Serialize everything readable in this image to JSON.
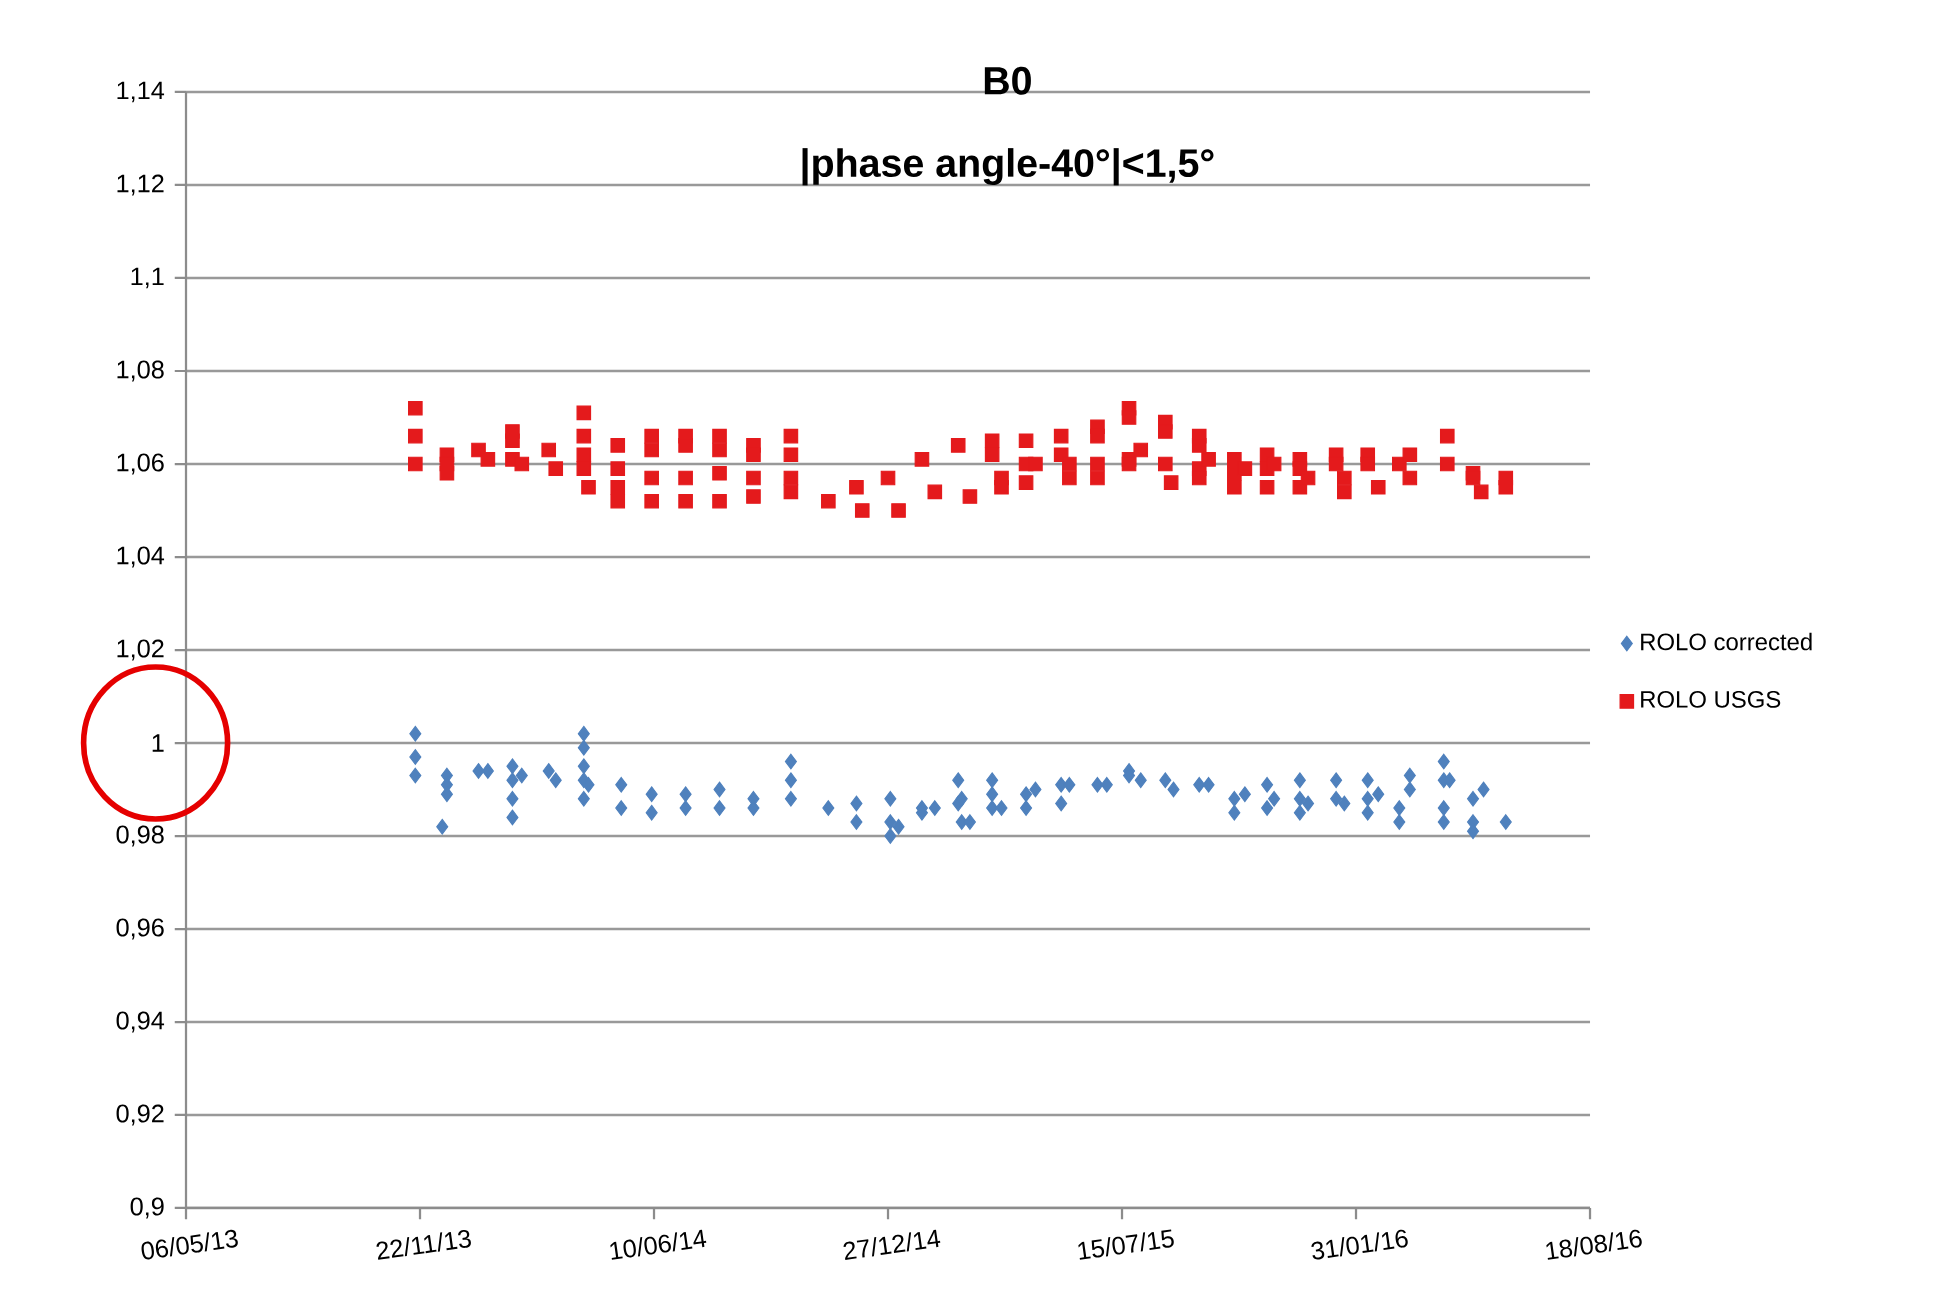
{
  "chart_data": {
    "type": "scatter",
    "title": "B0",
    "subtitle": "|phase angle-40°|<1,5°",
    "xlim": [
      "2013-05-06",
      "2016-08-18"
    ],
    "xticks": [
      {
        "value": "2013-05-06",
        "label": "06/05/13"
      },
      {
        "value": "2013-11-22",
        "label": "22/11/13"
      },
      {
        "value": "2014-06-10",
        "label": "10/06/14"
      },
      {
        "value": "2014-12-27",
        "label": "27/12/14"
      },
      {
        "value": "2015-07-15",
        "label": "15/07/15"
      },
      {
        "value": "2016-01-31",
        "label": "31/01/16"
      },
      {
        "value": "2016-08-18",
        "label": "18/08/16"
      }
    ],
    "ylim": [
      0.9,
      1.14
    ],
    "yticks": [
      {
        "value": 0.9,
        "label": "0,9"
      },
      {
        "value": 0.92,
        "label": "0,92"
      },
      {
        "value": 0.94,
        "label": "0,94"
      },
      {
        "value": 0.96,
        "label": "0,96"
      },
      {
        "value": 0.98,
        "label": "0,98"
      },
      {
        "value": 1,
        "label": "1"
      },
      {
        "value": 1.02,
        "label": "1,02"
      },
      {
        "value": 1.04,
        "label": "1,04"
      },
      {
        "value": 1.06,
        "label": "1,06"
      },
      {
        "value": 1.08,
        "label": "1,08"
      },
      {
        "value": 1.1,
        "label": "1,1"
      },
      {
        "value": 1.12,
        "label": "1,12"
      },
      {
        "value": 1.14,
        "label": "1,14"
      }
    ],
    "grid": "y",
    "legend": "right",
    "series": [
      {
        "name": "ROLO corrected",
        "color": "#4f81bd",
        "marker": "diamond",
        "x": [
          "2013-11-18",
          "2013-11-18",
          "2013-11-18",
          "2013-12-11",
          "2013-12-15",
          "2013-12-15",
          "2013-12-15",
          "2014-01-11",
          "2014-01-19",
          "2014-02-09",
          "2014-02-09",
          "2014-02-09",
          "2014-02-09",
          "2014-02-17",
          "2014-03-12",
          "2014-03-18",
          "2014-04-11",
          "2014-04-11",
          "2014-04-11",
          "2014-04-11",
          "2014-04-11",
          "2014-04-15",
          "2014-05-13",
          "2014-05-13",
          "2014-06-08",
          "2014-06-08",
          "2014-07-07",
          "2014-07-07",
          "2014-08-05",
          "2014-08-05",
          "2014-09-03",
          "2014-09-03",
          "2014-10-05",
          "2014-10-05",
          "2014-10-05",
          "2014-11-06",
          "2014-11-30",
          "2014-11-30",
          "2014-12-29",
          "2014-12-29",
          "2014-12-29",
          "2015-01-05",
          "2015-01-25",
          "2015-01-25",
          "2015-02-05",
          "2015-02-25",
          "2015-02-25",
          "2015-02-28",
          "2015-02-28",
          "2015-03-07",
          "2015-03-26",
          "2015-03-26",
          "2015-03-26",
          "2015-04-03",
          "2015-04-24",
          "2015-04-24",
          "2015-05-02",
          "2015-05-24",
          "2015-05-24",
          "2015-05-31",
          "2015-06-24",
          "2015-07-02",
          "2015-07-21",
          "2015-07-21",
          "2015-07-31",
          "2015-08-21",
          "2015-08-28",
          "2015-09-19",
          "2015-09-27",
          "2015-10-19",
          "2015-10-19",
          "2015-10-28",
          "2015-11-16",
          "2015-11-16",
          "2015-11-22",
          "2015-12-14",
          "2015-12-14",
          "2015-12-14",
          "2015-12-21",
          "2016-01-14",
          "2016-01-14",
          "2016-01-21",
          "2016-02-10",
          "2016-02-10",
          "2016-02-10",
          "2016-02-19",
          "2016-03-08",
          "2016-03-08",
          "2016-03-17",
          "2016-03-17",
          "2016-04-15",
          "2016-04-15",
          "2016-04-15",
          "2016-04-15",
          "2016-04-20",
          "2016-05-10",
          "2016-05-10",
          "2016-05-10",
          "2016-05-19",
          "2016-06-07"
        ],
        "values": [
          1.002,
          0.997,
          0.993,
          0.982,
          0.993,
          0.991,
          0.989,
          0.994,
          0.994,
          0.995,
          0.992,
          0.988,
          0.984,
          0.993,
          0.994,
          0.992,
          1.002,
          0.999,
          0.995,
          0.992,
          0.988,
          0.991,
          0.991,
          0.986,
          0.989,
          0.985,
          0.989,
          0.986,
          0.99,
          0.986,
          0.988,
          0.986,
          0.996,
          0.992,
          0.988,
          0.986,
          0.987,
          0.983,
          0.988,
          0.983,
          0.98,
          0.982,
          0.986,
          0.985,
          0.986,
          0.992,
          0.987,
          0.988,
          0.983,
          0.983,
          0.992,
          0.989,
          0.986,
          0.986,
          0.989,
          0.986,
          0.99,
          0.991,
          0.987,
          0.991,
          0.991,
          0.991,
          0.994,
          0.993,
          0.992,
          0.992,
          0.99,
          0.991,
          0.991,
          0.988,
          0.985,
          0.989,
          0.991,
          0.986,
          0.988,
          0.992,
          0.988,
          0.985,
          0.987,
          0.992,
          0.988,
          0.987,
          0.992,
          0.988,
          0.985,
          0.989,
          0.986,
          0.983,
          0.993,
          0.99,
          0.996,
          0.992,
          0.986,
          0.983,
          0.992,
          0.988,
          0.983,
          0.981,
          0.99,
          0.983
        ]
      },
      {
        "name": "ROLO USGS",
        "color": "#e41a1c",
        "marker": "square",
        "x": [
          "2013-11-18",
          "2013-11-18",
          "2013-11-18",
          "2013-12-15",
          "2013-12-15",
          "2013-12-15",
          "2014-01-11",
          "2014-01-19",
          "2014-02-09",
          "2014-02-09",
          "2014-02-09",
          "2014-02-17",
          "2014-03-12",
          "2014-03-18",
          "2014-04-11",
          "2014-04-11",
          "2014-04-11",
          "2014-04-11",
          "2014-04-15",
          "2014-05-10",
          "2014-05-10",
          "2014-05-10",
          "2014-05-10",
          "2014-06-08",
          "2014-06-08",
          "2014-06-08",
          "2014-06-08",
          "2014-07-07",
          "2014-07-07",
          "2014-07-07",
          "2014-07-07",
          "2014-08-05",
          "2014-08-05",
          "2014-08-05",
          "2014-08-05",
          "2014-09-03",
          "2014-09-03",
          "2014-09-03",
          "2014-09-03",
          "2014-10-05",
          "2014-10-05",
          "2014-10-05",
          "2014-10-05",
          "2014-11-06",
          "2014-11-30",
          "2014-12-05",
          "2014-12-27",
          "2015-01-05",
          "2015-01-25",
          "2015-02-05",
          "2015-02-25",
          "2015-03-07",
          "2015-03-26",
          "2015-03-26",
          "2015-04-03",
          "2015-04-03",
          "2015-04-24",
          "2015-04-24",
          "2015-04-24",
          "2015-05-02",
          "2015-05-24",
          "2015-05-24",
          "2015-05-31",
          "2015-05-31",
          "2015-06-24",
          "2015-06-24",
          "2015-06-24",
          "2015-06-24",
          "2015-07-21",
          "2015-07-21",
          "2015-07-21",
          "2015-07-21",
          "2015-07-31",
          "2015-08-21",
          "2015-08-21",
          "2015-08-21",
          "2015-08-26",
          "2015-09-19",
          "2015-09-19",
          "2015-09-19",
          "2015-09-19",
          "2015-09-27",
          "2015-10-19",
          "2015-10-19",
          "2015-10-19",
          "2015-10-28",
          "2015-11-16",
          "2015-11-16",
          "2015-11-16",
          "2015-11-22",
          "2015-12-14",
          "2015-12-14",
          "2015-12-14",
          "2015-12-21",
          "2016-01-14",
          "2016-01-14",
          "2016-01-21",
          "2016-01-21",
          "2016-02-10",
          "2016-02-10",
          "2016-02-19",
          "2016-03-08",
          "2016-03-17",
          "2016-03-17",
          "2016-04-18",
          "2016-04-18",
          "2016-05-10",
          "2016-05-10",
          "2016-05-17",
          "2016-06-07",
          "2016-06-07"
        ],
        "values": [
          1.072,
          1.066,
          1.06,
          1.062,
          1.06,
          1.058,
          1.063,
          1.061,
          1.067,
          1.065,
          1.061,
          1.06,
          1.063,
          1.059,
          1.071,
          1.066,
          1.062,
          1.059,
          1.055,
          1.064,
          1.059,
          1.055,
          1.052,
          1.066,
          1.063,
          1.057,
          1.052,
          1.066,
          1.064,
          1.057,
          1.052,
          1.066,
          1.063,
          1.058,
          1.052,
          1.064,
          1.062,
          1.057,
          1.053,
          1.066,
          1.062,
          1.057,
          1.054,
          1.052,
          1.055,
          1.05,
          1.057,
          1.05,
          1.061,
          1.054,
          1.064,
          1.053,
          1.065,
          1.062,
          1.057,
          1.055,
          1.065,
          1.06,
          1.056,
          1.06,
          1.066,
          1.062,
          1.06,
          1.057,
          1.068,
          1.066,
          1.06,
          1.057,
          1.072,
          1.07,
          1.061,
          1.06,
          1.063,
          1.069,
          1.067,
          1.06,
          1.056,
          1.066,
          1.064,
          1.059,
          1.057,
          1.061,
          1.061,
          1.058,
          1.055,
          1.059,
          1.062,
          1.059,
          1.055,
          1.06,
          1.061,
          1.059,
          1.055,
          1.057,
          1.062,
          1.06,
          1.057,
          1.054,
          1.062,
          1.06,
          1.055,
          1.06,
          1.062,
          1.057,
          1.066,
          1.06,
          1.058,
          1.057,
          1.054,
          1.057,
          1.055
        ]
      }
    ]
  }
}
